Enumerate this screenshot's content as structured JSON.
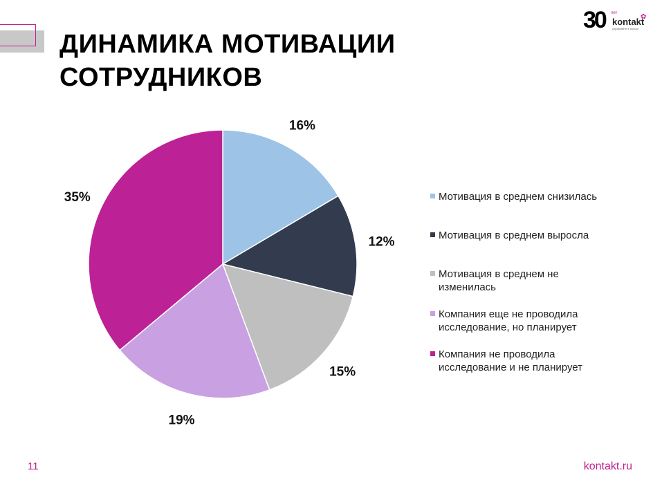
{
  "slide": {
    "title_line1": "ДИНАМИКА МОТИВАЦИИ",
    "title_line2": "СОТРУДНИКОВ",
    "page_number": "11",
    "site": "kontakt.ru"
  },
  "logo": {
    "number": "30",
    "years": "лет",
    "brand": "kontakt",
    "tagline": "управляйте в пользу"
  },
  "colors": {
    "accent": "#c0208a",
    "bar": "#c8c8c8"
  },
  "chart_data": {
    "type": "pie",
    "categories": [
      "Мотивация в среднем снизилась",
      "Мотивация в среднем выросла",
      "Мотивация в среднем не изменилась",
      "Компания еще не проводила исследование, но планирует",
      "Компания не проводила исследование и не планирует"
    ],
    "values": [
      16,
      12,
      15,
      19,
      35
    ],
    "labels": [
      "16%",
      "12%",
      "15%",
      "19%",
      "35%"
    ],
    "colors": [
      "#9dc3e6",
      "#323c4e",
      "#bfbfbf",
      "#c9a0e2",
      "#bd2196"
    ],
    "legend_position": "right",
    "legend_lines": [
      [
        "Мотивация в среднем снизилась"
      ],
      [
        "Мотивация в среднем выросла"
      ],
      [
        "Мотивация в среднем не",
        "изменилась"
      ],
      [
        "Компания еще не проводила",
        "исследование, но планирует"
      ],
      [
        "Компания не проводила",
        "исследование и не планирует"
      ]
    ]
  }
}
